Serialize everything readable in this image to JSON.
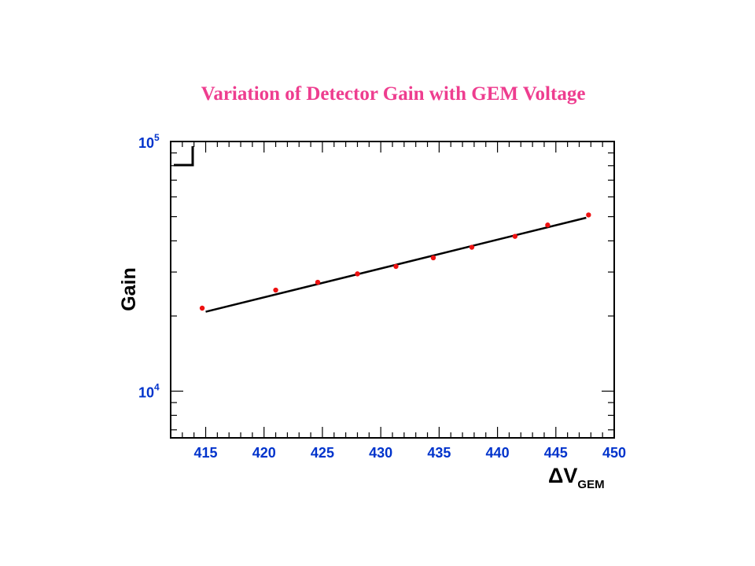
{
  "colors": {
    "title": "#ee3d8f",
    "ticks": "#0033cc",
    "points": "#ee1111",
    "fit": "#000000",
    "frame": "#000000"
  },
  "chart_data": {
    "type": "scatter",
    "title": "Variation of Detector Gain with GEM Voltage",
    "xlabel": "ΔV",
    "xlabel_subscript": "GEM",
    "ylabel": "Gain",
    "xlim": [
      412,
      450
    ],
    "ylim": [
      6500,
      100000
    ],
    "yscale": "log",
    "grid": false,
    "x_tick_labels": [
      "415",
      "420",
      "425",
      "430",
      "435",
      "440",
      "445",
      "450"
    ],
    "y_tick_labels": [
      {
        "base": "10",
        "exp": "4",
        "value": 10000
      },
      {
        "base": "10",
        "exp": "5",
        "value": 100000
      }
    ],
    "series": [
      {
        "points": [
          {
            "x": 414.7,
            "y": 21500
          },
          {
            "x": 421.0,
            "y": 25400
          },
          {
            "x": 424.6,
            "y": 27300
          },
          {
            "x": 428.0,
            "y": 29500
          },
          {
            "x": 431.3,
            "y": 31600
          },
          {
            "x": 434.5,
            "y": 34200
          },
          {
            "x": 437.8,
            "y": 37700
          },
          {
            "x": 441.5,
            "y": 41700
          },
          {
            "x": 444.3,
            "y": 46300
          },
          {
            "x": 447.8,
            "y": 50800
          }
        ]
      }
    ],
    "fit_line": {
      "from": {
        "x": 415,
        "y": 20800
      },
      "to": {
        "x": 447.6,
        "y": 49500
      }
    }
  }
}
